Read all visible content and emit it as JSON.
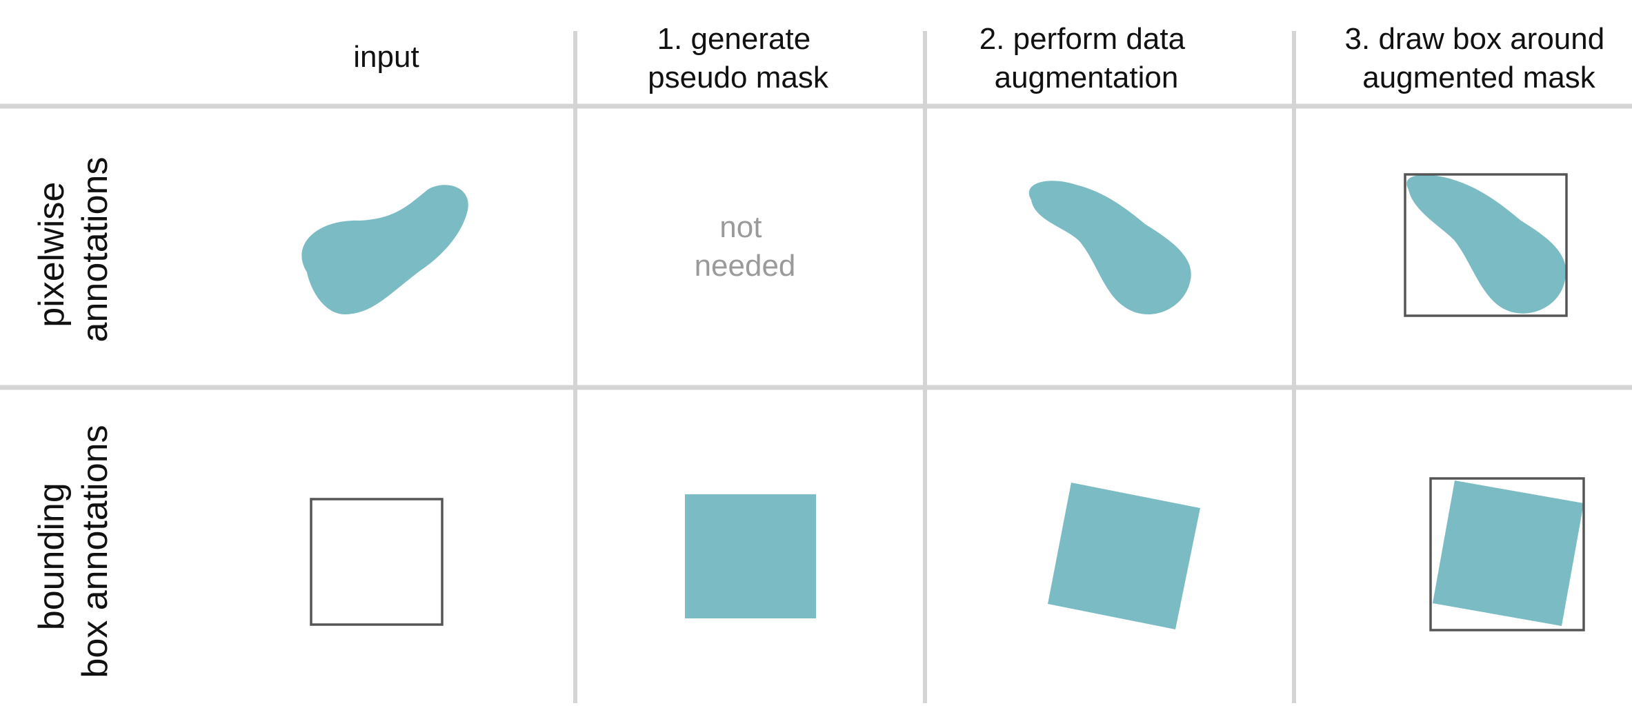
{
  "column_headers": {
    "input": [
      "input"
    ],
    "generate": [
      "1. generate",
      "pseudo mask"
    ],
    "augment": [
      "2. perform data",
      "augmentation"
    ],
    "draw_box": [
      "3. draw box around",
      "augmented mask"
    ]
  },
  "row_headers": {
    "pixelwise": [
      "pixelwise",
      "annotations"
    ],
    "bbox": [
      "bounding",
      "box annotations"
    ]
  },
  "cells": {
    "pixelwise_generate": [
      "not",
      "needed"
    ]
  },
  "colors": {
    "mask_fill": "#7bbcc4",
    "box_stroke": "#555555",
    "grid": "#d4d4d4",
    "muted_text": "#9a9a9a"
  }
}
